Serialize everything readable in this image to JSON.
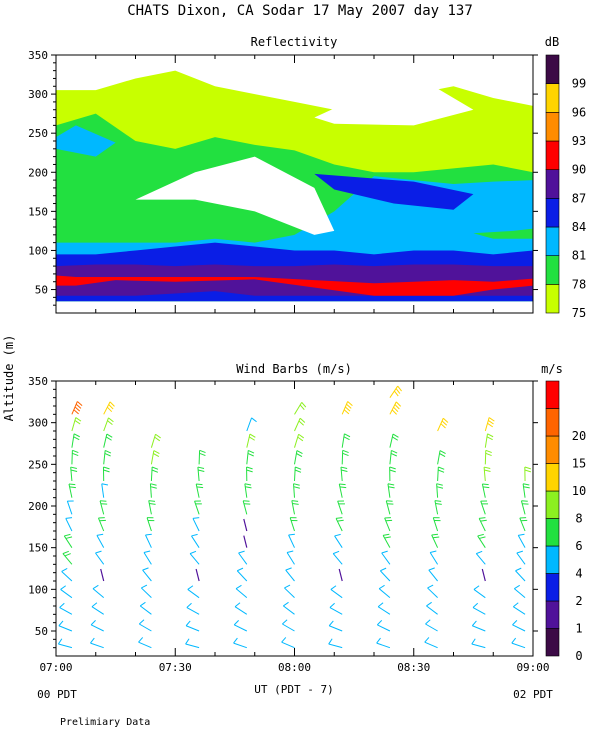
{
  "page": {
    "title": "CHATS Dixon, CA  Sodar  17 May 2007  day 137",
    "footnote": "Prelimiary Data",
    "y_axis_label": "Altitude (m)",
    "x_axis_label": "UT  (PDT - 7)",
    "start_local_label": "00 PDT",
    "end_local_label": "02 PDT"
  },
  "chart_data": [
    {
      "type": "heatmap",
      "title": "Reflectivity",
      "colorbar_label": "dB",
      "xlabel": "UT  (PDT - 7)",
      "ylabel": "Altitude (m)",
      "x_ticks": [
        "07:00",
        "07:30",
        "08:00",
        "08:30",
        "09:00"
      ],
      "y_ticks": [
        "50",
        "100",
        "150",
        "200",
        "250",
        "300",
        "350"
      ],
      "xlim": [
        "07:00",
        "09:00"
      ],
      "ylim": [
        20,
        350
      ],
      "colorbar_ticks": [
        "75",
        "78",
        "81",
        "84",
        "87",
        "90",
        "93",
        "96",
        "99"
      ],
      "levels": [
        {
          "value": 75,
          "color": "#c8ff00"
        },
        {
          "value": 78,
          "color": "#22e040"
        },
        {
          "value": 81,
          "color": "#00b8ff"
        },
        {
          "value": 84,
          "color": "#0a1ee6"
        },
        {
          "value": 87,
          "color": "#50129a"
        },
        {
          "value": 90,
          "color": "#ff0000"
        },
        {
          "value": 93,
          "color": "#ff8c00"
        },
        {
          "value": 96,
          "color": "#ffd400"
        },
        {
          "value": 99,
          "color": "#3c0a46"
        }
      ],
      "bands": [
        {
          "value": 75,
          "times": [
            "07:00",
            "07:10",
            "07:20",
            "07:30",
            "07:40",
            "07:50",
            "08:00",
            "08:10",
            "08:20",
            "08:30",
            "08:40",
            "08:50",
            "09:00"
          ],
          "lower": [
            35,
            35,
            35,
            35,
            35,
            35,
            35,
            35,
            35,
            35,
            35,
            35,
            35
          ],
          "upper": [
            305,
            305,
            320,
            330,
            310,
            300,
            290,
            280,
            290,
            300,
            310,
            295,
            285
          ]
        },
        {
          "value": 78,
          "times": [
            "07:00",
            "07:10",
            "07:20",
            "07:30",
            "07:40",
            "07:50",
            "08:00",
            "08:10",
            "08:20",
            "08:30",
            "08:40",
            "08:50",
            "09:00"
          ],
          "lower": [
            35,
            35,
            35,
            35,
            35,
            35,
            35,
            35,
            35,
            35,
            35,
            35,
            35
          ],
          "upper": [
            260,
            275,
            240,
            230,
            245,
            235,
            228,
            210,
            200,
            200,
            205,
            210,
            200
          ]
        },
        {
          "value": 81,
          "times": [
            "07:00",
            "07:10",
            "07:20",
            "07:30",
            "07:40",
            "07:50",
            "08:00",
            "08:10",
            "08:20",
            "08:30",
            "08:40",
            "08:50",
            "09:00"
          ],
          "lower": [
            35,
            35,
            35,
            35,
            35,
            35,
            35,
            35,
            35,
            35,
            35,
            35,
            35
          ],
          "upper": [
            110,
            110,
            110,
            110,
            115,
            110,
            120,
            150,
            195,
            190,
            185,
            188,
            190
          ]
        },
        {
          "value": 84,
          "times": [
            "07:00",
            "07:10",
            "07:20",
            "07:30",
            "07:40",
            "07:50",
            "08:00",
            "08:10",
            "08:20",
            "08:30",
            "08:40",
            "08:50",
            "09:00"
          ],
          "lower": [
            35,
            35,
            35,
            35,
            35,
            35,
            35,
            35,
            35,
            35,
            35,
            35,
            35
          ],
          "upper": [
            95,
            95,
            100,
            105,
            110,
            105,
            100,
            100,
            95,
            100,
            100,
            95,
            100
          ]
        },
        {
          "value": 87,
          "times": [
            "07:00",
            "07:10",
            "07:20",
            "07:30",
            "07:40",
            "07:50",
            "08:00",
            "08:10",
            "08:20",
            "08:30",
            "08:40",
            "08:50",
            "09:00"
          ],
          "lower": [
            42,
            42,
            42,
            45,
            48,
            42,
            42,
            42,
            42,
            42,
            42,
            42,
            42
          ],
          "upper": [
            80,
            82,
            82,
            80,
            82,
            80,
            80,
            82,
            80,
            82,
            82,
            80,
            80
          ]
        },
        {
          "value": 90,
          "times": [
            "07:00",
            "07:05",
            "07:15",
            "07:30",
            "07:50",
            "08:20",
            "08:30",
            "08:40",
            "08:50",
            "09:00"
          ],
          "lower": [
            55,
            55,
            62,
            60,
            63,
            42,
            42,
            42,
            50,
            55
          ],
          "upper": [
            68,
            66,
            66,
            66,
            66,
            58,
            60,
            62,
            60,
            64
          ]
        }
      ],
      "overlays": [
        {
          "note": "region below 75 dB (blank)",
          "value": 0,
          "times": [
            "07:20",
            "07:35",
            "07:50",
            "08:05",
            "08:10",
            "08:05",
            "07:50",
            "07:35",
            "07:20"
          ],
          "alts": [
            165,
            200,
            220,
            180,
            125,
            120,
            150,
            165,
            165
          ]
        },
        {
          "note": "region below 75 dB near top",
          "value": 0,
          "times": [
            "08:05",
            "08:20",
            "08:35",
            "08:45",
            "08:30",
            "08:10"
          ],
          "alts": [
            270,
            305,
            310,
            280,
            260,
            262
          ]
        },
        {
          "value": 81,
          "times": [
            "07:00",
            "07:05",
            "07:15",
            "07:10",
            "07:00"
          ],
          "alts": [
            245,
            260,
            238,
            220,
            230
          ]
        },
        {
          "value": 84,
          "times": [
            "08:05",
            "08:30",
            "08:45",
            "08:40",
            "08:25",
            "08:10"
          ],
          "alts": [
            198,
            188,
            172,
            152,
            160,
            178
          ]
        },
        {
          "value": 78,
          "times": [
            "08:45",
            "08:55",
            "09:00",
            "09:00",
            "08:50"
          ],
          "alts": [
            122,
            125,
            128,
            115,
            115
          ]
        }
      ]
    },
    {
      "type": "scatter",
      "title": "Wind Barbs (m/s)",
      "colorbar_label": "m/s",
      "xlabel": "UT  (PDT - 7)",
      "ylabel": "Altitude (m)",
      "x_ticks": [
        "07:00",
        "07:30",
        "08:00",
        "08:30",
        "09:00"
      ],
      "y_ticks": [
        "50",
        "100",
        "150",
        "200",
        "250",
        "300",
        "350"
      ],
      "xlim": [
        "07:00",
        "09:00"
      ],
      "ylim": [
        20,
        350
      ],
      "colorbar_ticks": [
        "0",
        "1",
        "2",
        "4",
        "6",
        "8",
        "10",
        "15",
        "20"
      ],
      "speed_levels": [
        {
          "speed": 0,
          "color": "#3c0a46"
        },
        {
          "speed": 1,
          "color": "#50129a"
        },
        {
          "speed": 2,
          "color": "#0a1ee6"
        },
        {
          "speed": 4,
          "color": "#00b8ff"
        },
        {
          "speed": 6,
          "color": "#22e040"
        },
        {
          "speed": 8,
          "color": "#8cf020"
        },
        {
          "speed": 10,
          "color": "#ffd400"
        },
        {
          "speed": 15,
          "color": "#ff8c00"
        },
        {
          "speed": 20,
          "color": "#ff6400"
        },
        {
          "speed": 24,
          "color": "#ff0000"
        }
      ],
      "times": [
        "07:04",
        "07:12",
        "07:24",
        "07:36",
        "07:48",
        "08:00",
        "08:12",
        "08:24",
        "08:36",
        "08:48",
        "08:58"
      ],
      "altitudes": [
        30,
        50,
        70,
        90,
        110,
        130,
        150,
        170,
        190,
        210,
        230,
        250,
        270,
        290,
        310,
        330
      ],
      "speed_grid": [
        [
          4,
          4,
          5,
          5,
          5,
          6,
          6,
          5,
          5,
          6,
          6,
          7,
          7,
          8,
          22,
          null
        ],
        [
          4,
          4,
          5,
          5,
          1,
          5,
          5,
          6,
          6,
          5,
          6,
          6,
          7,
          8,
          11,
          null
        ],
        [
          4,
          5,
          5,
          5,
          5,
          5,
          5,
          6,
          7,
          7,
          7,
          8,
          8,
          null,
          null,
          null
        ],
        [
          4,
          4,
          4,
          5,
          1,
          4,
          5,
          5,
          6,
          6,
          7,
          7,
          null,
          null,
          null,
          null
        ],
        [
          4,
          4,
          4,
          5,
          4,
          5,
          1,
          1,
          6,
          7,
          7,
          7,
          9,
          4,
          null,
          null
        ],
        [
          4,
          4,
          4,
          5,
          4,
          5,
          5,
          6,
          6,
          7,
          7,
          7,
          8,
          9,
          9,
          null
        ],
        [
          4,
          4,
          5,
          5,
          1,
          5,
          5,
          6,
          6,
          7,
          7,
          7,
          7,
          null,
          14,
          null
        ],
        [
          4,
          4,
          5,
          5,
          5,
          5,
          6,
          6,
          6,
          7,
          7,
          7,
          7,
          null,
          14,
          13
        ],
        [
          4,
          4,
          5,
          5,
          5,
          5,
          6,
          6,
          6,
          7,
          7,
          7,
          null,
          11,
          null,
          null
        ],
        [
          4,
          4,
          5,
          5,
          1,
          5,
          6,
          6,
          6,
          7,
          8,
          9,
          9,
          10,
          null,
          null
        ],
        [
          4,
          4,
          5,
          5,
          5,
          5,
          5,
          6,
          6,
          7,
          8,
          null,
          null,
          null,
          null,
          null
        ]
      ]
    }
  ]
}
